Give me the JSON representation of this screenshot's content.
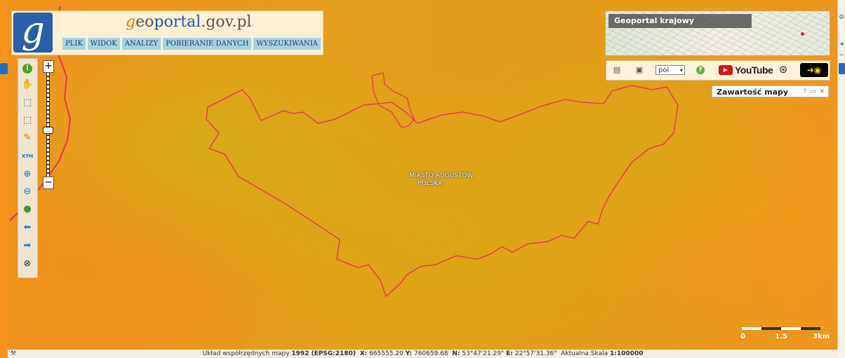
{
  "header": {
    "title_g": "g",
    "title_eo": "eo",
    "title_portal": "portal",
    "title_suffix": ".gov.pl",
    "logo_letter": "g",
    "menu": [
      {
        "label": "PLIK"
      },
      {
        "label": "WIDOK"
      },
      {
        "label": "ANALIZY"
      },
      {
        "label": "POBIERANIE DANYCH"
      },
      {
        "label": "WYSZUKIWANIA"
      }
    ]
  },
  "toolbar": {
    "tools": [
      {
        "name": "info-icon",
        "glyph": "i"
      },
      {
        "name": "pan-hand-icon",
        "glyph": "✋"
      },
      {
        "name": "select-rect-icon",
        "glyph": "⬚"
      },
      {
        "name": "deselect-rect-icon",
        "glyph": "⬚"
      },
      {
        "name": "pencil-icon",
        "glyph": "✎"
      },
      {
        "name": "xyh-icon",
        "glyph": "XYH"
      },
      {
        "name": "zoom-in-icon",
        "glyph": "⊕"
      },
      {
        "name": "zoom-out-icon",
        "glyph": "⊖"
      },
      {
        "name": "globe-icon",
        "glyph": "●"
      },
      {
        "name": "arrow-back-icon",
        "glyph": "⬅"
      },
      {
        "name": "arrow-forward-icon",
        "glyph": "➡"
      },
      {
        "name": "compass-icon",
        "glyph": "⊗"
      }
    ]
  },
  "zoom": {
    "plus": "+",
    "minus": "−",
    "level": 0.53
  },
  "overview": {
    "label": "Geoportal krajowy"
  },
  "tools_bar": {
    "language": "pol",
    "youtube": "YouTube"
  },
  "legend": {
    "title": "Zawartość mapy",
    "buttons": "? ▭ ✕"
  },
  "map": {
    "place_line1": "MIASTO AUGUSTÓW",
    "place_line2": "POLSKA"
  },
  "scale": {
    "label_0": "0",
    "label_mid": "1.5",
    "label_end": "3km"
  },
  "status": {
    "prefix": "Układ współrzędnych mapy",
    "crs": "1992 (EPSG:2180)",
    "x_label": "X:",
    "x_value": "665555.20",
    "y_label": "Y:",
    "y_value": "760659.68",
    "n_label": "N:",
    "n_value": "53°47'21.29\"",
    "e_label": "E:",
    "e_value": "22°57'31.36\"",
    "scale_label": "Aktualna Skala",
    "scale_value": "1:100000"
  },
  "colors": {
    "boundary": "#e8345a",
    "accent": "#1e5aa8"
  }
}
